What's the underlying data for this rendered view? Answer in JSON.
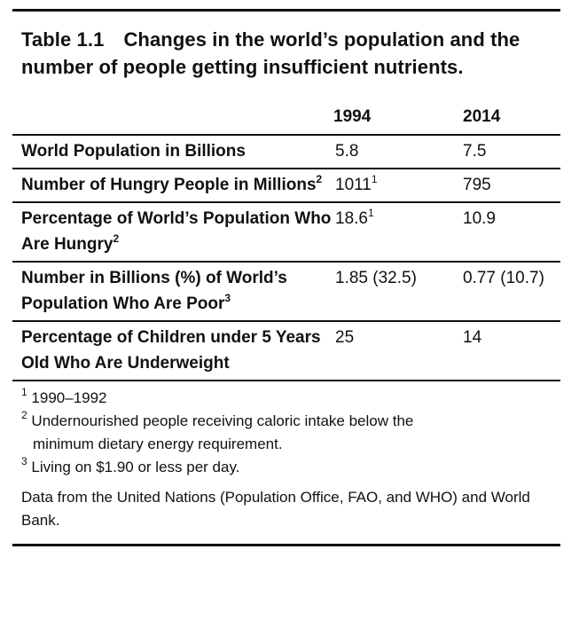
{
  "table": {
    "number": "Table 1.1",
    "title": "Changes in the world’s population and the number of people getting insufficient nutrients.",
    "columns": [
      "",
      "1994",
      "2014"
    ],
    "rows": [
      {
        "label": "World Population in Billions",
        "label_sup": "",
        "v1": "5.8",
        "v1_sup": "",
        "v2": "7.5"
      },
      {
        "label": "Number of Hungry People in Millions",
        "label_sup": "2",
        "v1": "1011",
        "v1_sup": "1",
        "v2": "795"
      },
      {
        "label": "Percentage of World’s Population Who Are Hungry",
        "label_sup": "2",
        "v1": "18.6",
        "v1_sup": "1",
        "v2": "10.9"
      },
      {
        "label": "Number in Billions (%) of World’s Population Who Are Poor",
        "label_sup": "3",
        "v1": "1.85 (32.5)",
        "v1_sup": "",
        "v2": "0.77 (10.7)"
      },
      {
        "label": "Percentage of Children under 5 Years Old Who Are Underweight",
        "label_sup": "",
        "v1": "25",
        "v1_sup": "",
        "v2": "14"
      }
    ],
    "footnotes": [
      {
        "mark": "1",
        "text": "1990–1992",
        "cont": ""
      },
      {
        "mark": "2",
        "text": "Undernourished people receiving caloric intake below the",
        "cont": "minimum dietary energy requirement."
      },
      {
        "mark": "3",
        "text": "Living on $1.90 or less per day.",
        "cont": ""
      }
    ],
    "source": "Data from the United Nations (Population Office, FAO, and WHO) and World Bank."
  }
}
